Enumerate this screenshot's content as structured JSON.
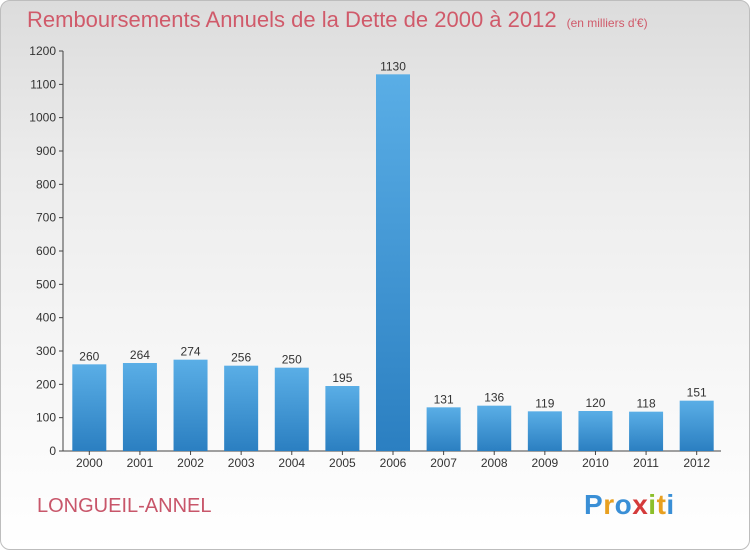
{
  "header": {
    "title": "Remboursements Annuels de la Dette de 2000 à 2012",
    "unit": "(en milliers d'€)"
  },
  "footer": {
    "town": "LONGUEIL-ANNEL",
    "logo": "Proxiti"
  },
  "colors": {
    "bar_top": "#5aaee6",
    "bar_bottom": "#2b7fc1",
    "title": "#d05a6a",
    "logo_letters": [
      "#3a8fd6",
      "#e8a020",
      "#3a8fd6",
      "#d43a3a",
      "#8cbf2a",
      "#e8a020",
      "#3a8fd6"
    ]
  },
  "chart_data": {
    "type": "bar",
    "categories": [
      "2000",
      "2001",
      "2002",
      "2003",
      "2004",
      "2005",
      "2006",
      "2007",
      "2008",
      "2009",
      "2010",
      "2011",
      "2012"
    ],
    "values": [
      260,
      264,
      274,
      256,
      250,
      195,
      1130,
      131,
      136,
      119,
      120,
      118,
      151
    ],
    "title": "Remboursements Annuels de la Dette de 2000 à 2012",
    "ylim": [
      0,
      1200
    ],
    "yticks": [
      0,
      100,
      200,
      300,
      400,
      500,
      600,
      700,
      800,
      900,
      1000,
      1100,
      1200
    ],
    "grid": false,
    "legend": "none"
  }
}
